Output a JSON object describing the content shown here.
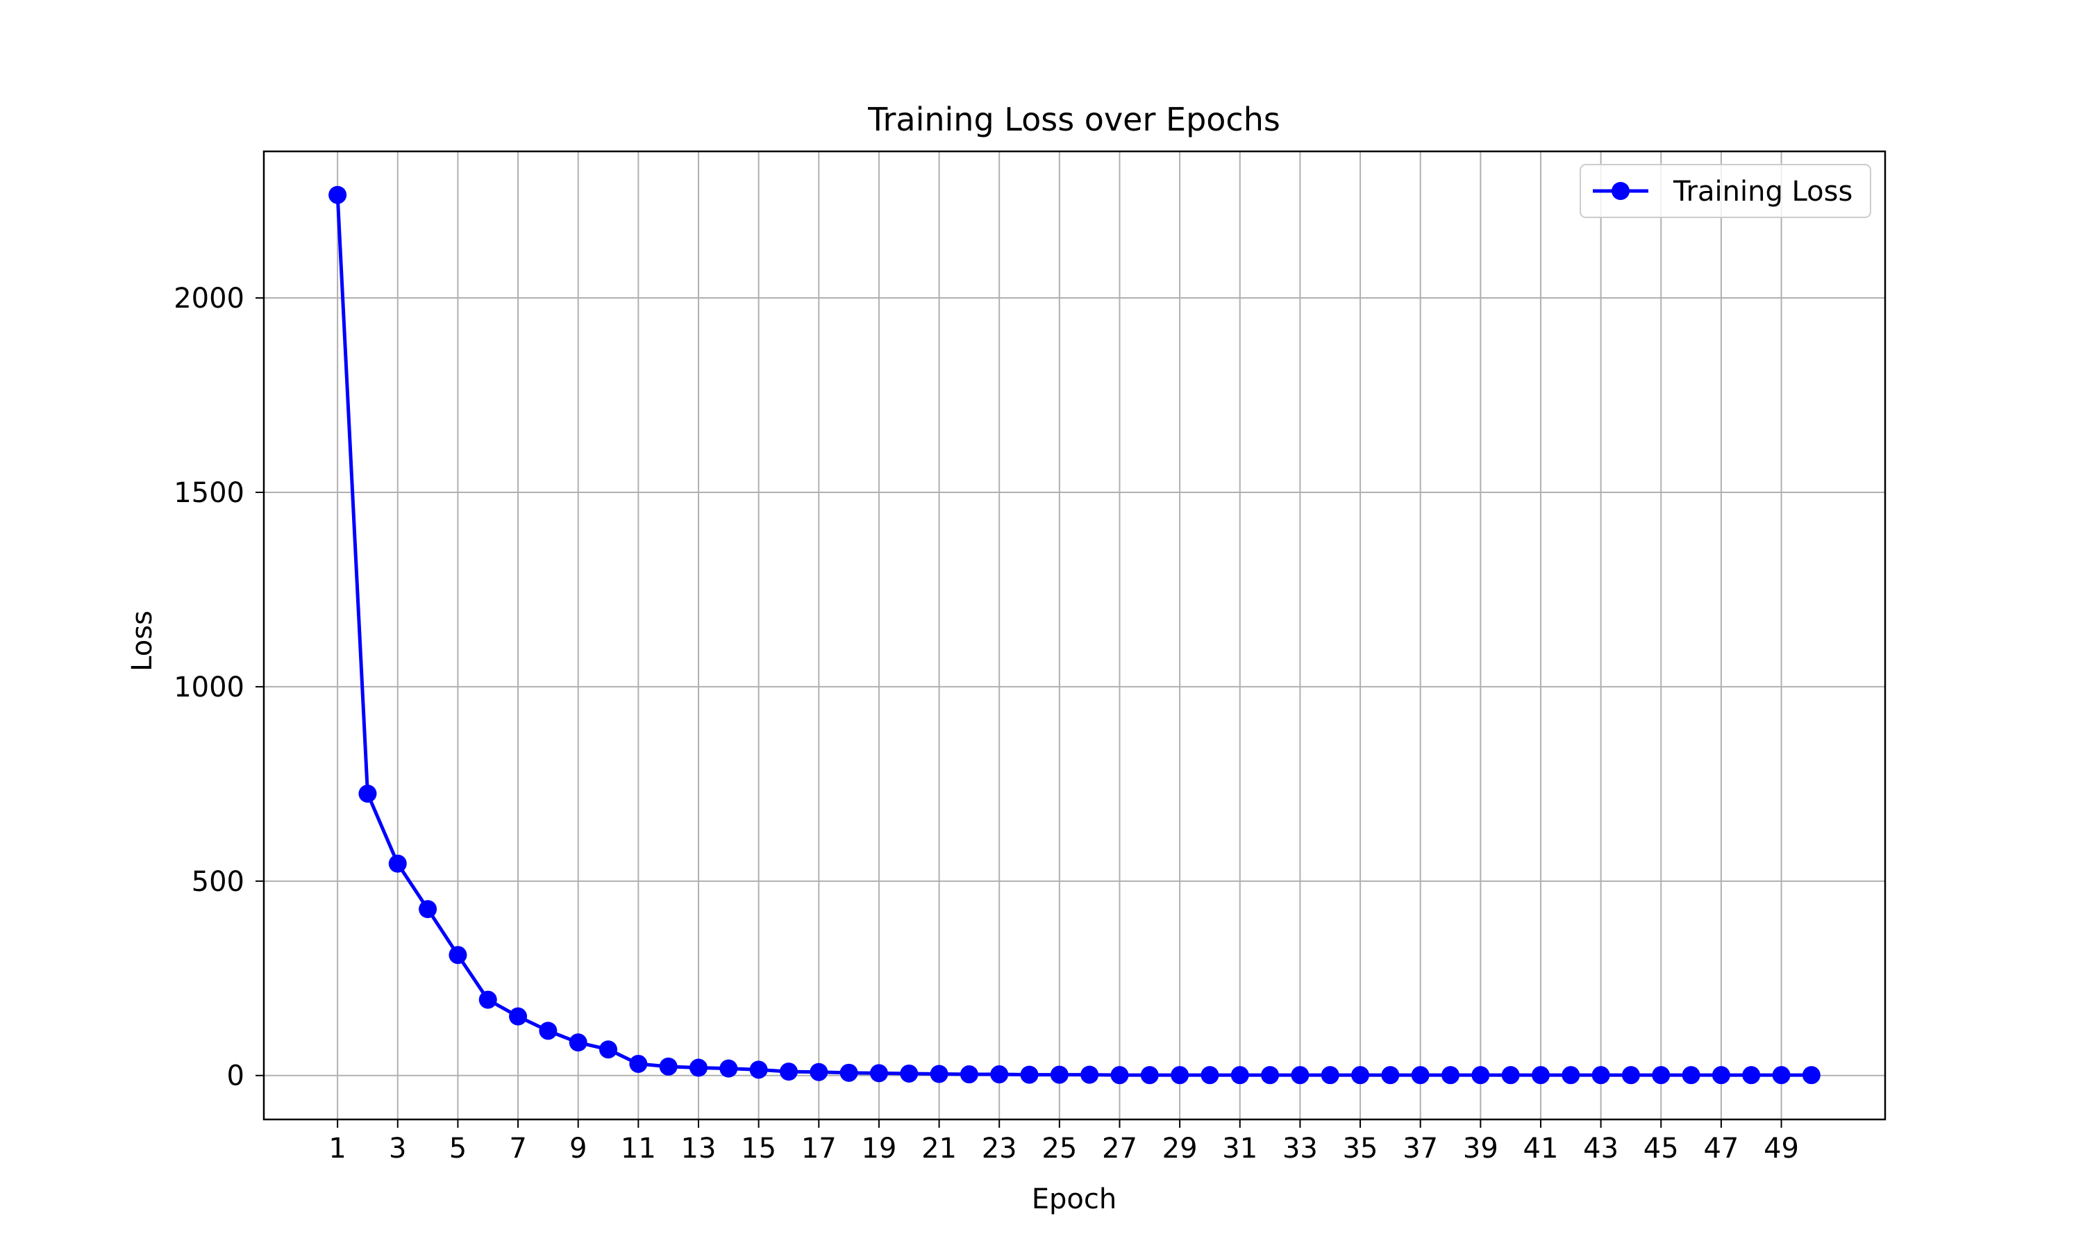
{
  "chart_data": {
    "type": "line",
    "title": "Training Loss over Epochs",
    "xlabel": "Epoch",
    "ylabel": "Loss",
    "x": [
      1,
      2,
      3,
      4,
      5,
      6,
      7,
      8,
      9,
      10,
      11,
      12,
      13,
      14,
      15,
      16,
      17,
      18,
      19,
      20,
      21,
      22,
      23,
      24,
      25,
      26,
      27,
      28,
      29,
      30,
      31,
      32,
      33,
      34,
      35,
      36,
      37,
      38,
      39,
      40,
      41,
      42,
      43,
      44,
      45,
      46,
      47,
      48,
      49,
      50
    ],
    "xticks": [
      1,
      3,
      5,
      7,
      9,
      11,
      13,
      15,
      17,
      19,
      21,
      23,
      25,
      27,
      29,
      31,
      33,
      35,
      37,
      39,
      41,
      43,
      45,
      47,
      49
    ],
    "yticks": [
      0,
      500,
      1000,
      1500,
      2000
    ],
    "xlim": [
      -1.45,
      52.45
    ],
    "ylim": [
      -113,
      2377
    ],
    "grid": true,
    "legend_position": "upper-right",
    "series": [
      {
        "name": "Training Loss",
        "color": "#0000ff",
        "marker": "circle",
        "values": [
          2265,
          725,
          545,
          428,
          310,
          195,
          152,
          115,
          85,
          67,
          30,
          23,
          20,
          18,
          15,
          10,
          9,
          7,
          6,
          5,
          4,
          3,
          3,
          2,
          2,
          2,
          1,
          1,
          1,
          1,
          1,
          1,
          1,
          1,
          1,
          1,
          1,
          1,
          1,
          1,
          1,
          1,
          1,
          1,
          1,
          1,
          1,
          1,
          1,
          1
        ]
      }
    ]
  }
}
